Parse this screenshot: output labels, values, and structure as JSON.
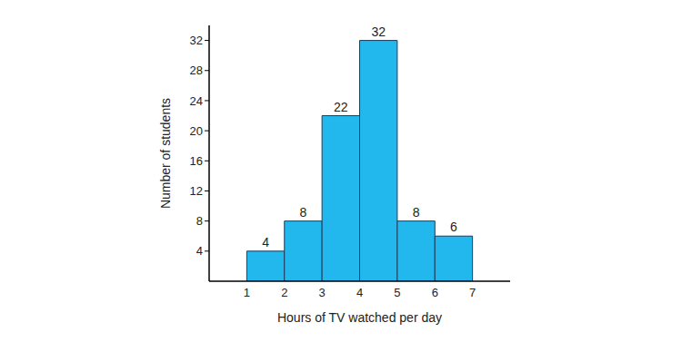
{
  "chart_data": {
    "type": "histogram",
    "x_label": "Hours of TV watched per day",
    "y_label": "Number of students",
    "bins": [
      1,
      2,
      3,
      4,
      5,
      6,
      7
    ],
    "values": [
      4,
      8,
      22,
      32,
      8,
      6
    ],
    "color": "#22b8ee",
    "xlim": [
      0,
      8
    ],
    "ylim": [
      0,
      34
    ],
    "xticks": [
      1,
      2,
      3,
      4,
      5,
      6,
      7
    ],
    "yticks": [
      4,
      8,
      12,
      16,
      20,
      24,
      28,
      32
    ],
    "data_labels": true,
    "grid": false
  }
}
